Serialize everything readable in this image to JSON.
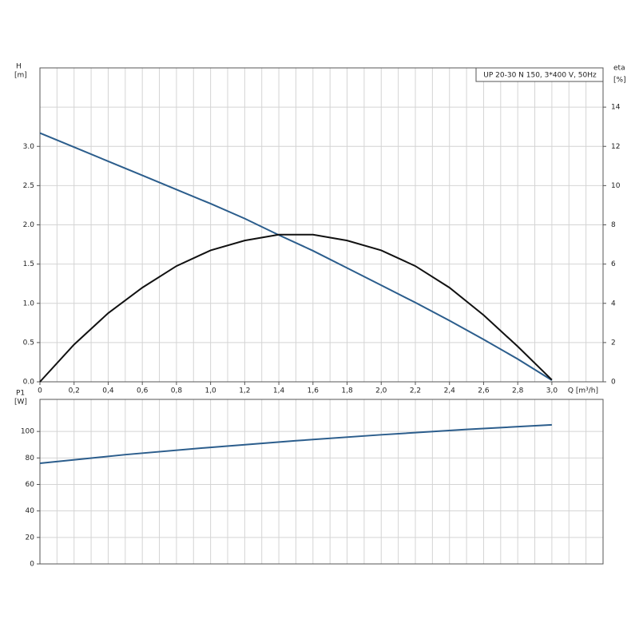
{
  "chart_data": [
    {
      "type": "line",
      "title": "UP 20-30 N 150, 3*400 V, 50Hz",
      "y_label": "H",
      "y_unit": "[m]",
      "y2_label": "eta",
      "y2_unit": "[%]",
      "x_label": "Q [m³/h]",
      "x": [
        0,
        0.2,
        0.4,
        0.6,
        0.8,
        1.0,
        1.2,
        1.4,
        1.6,
        1.8,
        2.0,
        2.2,
        2.4,
        2.6,
        2.8,
        3.0
      ],
      "series": [
        {
          "name": "H",
          "color": "#2b5d8c",
          "values": [
            3.17,
            2.99,
            2.81,
            2.63,
            2.45,
            2.27,
            2.08,
            1.87,
            1.67,
            1.45,
            1.23,
            1.01,
            0.78,
            0.54,
            0.29,
            0.02
          ]
        },
        {
          "name": "eta",
          "color": "#111111",
          "axis": "y2",
          "values": [
            0,
            1.9,
            3.5,
            4.8,
            5.9,
            6.7,
            7.2,
            7.5,
            7.5,
            7.2,
            6.7,
            5.9,
            4.8,
            3.4,
            1.8,
            0.1
          ]
        }
      ],
      "xlim": [
        0,
        3.3
      ],
      "xticks": [
        {
          "value": 0,
          "label": "0"
        },
        {
          "value": 0.2,
          "label": "0,2"
        },
        {
          "value": 0.4,
          "label": "0,4"
        },
        {
          "value": 0.6,
          "label": "0,6"
        },
        {
          "value": 0.8,
          "label": "0,8"
        },
        {
          "value": 1.0,
          "label": "1,0"
        },
        {
          "value": 1.2,
          "label": "1,2"
        },
        {
          "value": 1.4,
          "label": "1,4"
        },
        {
          "value": 1.6,
          "label": "1,6"
        },
        {
          "value": 1.8,
          "label": "1,8"
        },
        {
          "value": 2.0,
          "label": "2,0"
        },
        {
          "value": 2.2,
          "label": "2,2"
        },
        {
          "value": 2.4,
          "label": "2,4"
        },
        {
          "value": 2.6,
          "label": "2,6"
        },
        {
          "value": 2.8,
          "label": "2,8"
        },
        {
          "value": 3.0,
          "label": "3,0"
        }
      ],
      "xgrid": [
        0.1,
        0.2,
        0.3,
        0.4,
        0.5,
        0.6,
        0.7,
        0.8,
        0.9,
        1.0,
        1.1,
        1.2,
        1.3,
        1.4,
        1.5,
        1.6,
        1.7,
        1.8,
        1.9,
        2.0,
        2.1,
        2.2,
        2.3,
        2.4,
        2.5,
        2.6,
        2.7,
        2.8,
        2.9,
        3.0,
        3.1,
        3.2
      ],
      "ylim": [
        0,
        4.0
      ],
      "yticks": [
        {
          "value": 0,
          "label": "0.0"
        },
        0.5,
        {
          "value": 1.0,
          "label": "1.0"
        },
        1.5,
        {
          "value": 2.0,
          "label": "2.0"
        },
        2.5,
        {
          "value": 3.0,
          "label": "3.0"
        }
      ],
      "ygrid": [
        0.5,
        1.0,
        1.5,
        2.0,
        2.5,
        3.0,
        3.5
      ],
      "y2lim": [
        0,
        16
      ],
      "y2ticks": [
        0,
        2,
        4,
        6,
        8,
        10,
        12,
        14
      ],
      "grid": true
    },
    {
      "type": "line",
      "y_label": "P1",
      "y_unit": "[W]",
      "x": [
        0,
        0.5,
        1.0,
        1.5,
        2.0,
        2.5,
        3.0
      ],
      "series": [
        {
          "name": "P1",
          "color": "#2b5d8c",
          "values": [
            76,
            82.5,
            88,
            93,
            97.5,
            101.5,
            105
          ]
        }
      ],
      "xlim": [
        0,
        3.3
      ],
      "xgrid": [
        0.1,
        0.2,
        0.3,
        0.4,
        0.5,
        0.6,
        0.7,
        0.8,
        0.9,
        1.0,
        1.1,
        1.2,
        1.3,
        1.4,
        1.5,
        1.6,
        1.7,
        1.8,
        1.9,
        2.0,
        2.1,
        2.2,
        2.3,
        2.4,
        2.5,
        2.6,
        2.7,
        2.8,
        2.9,
        3.0,
        3.1,
        3.2
      ],
      "ylim": [
        0,
        120
      ],
      "yticks": [
        0,
        20,
        40,
        60,
        80,
        100
      ],
      "ygrid": [
        20,
        40,
        60,
        80,
        100
      ],
      "grid": true
    }
  ]
}
